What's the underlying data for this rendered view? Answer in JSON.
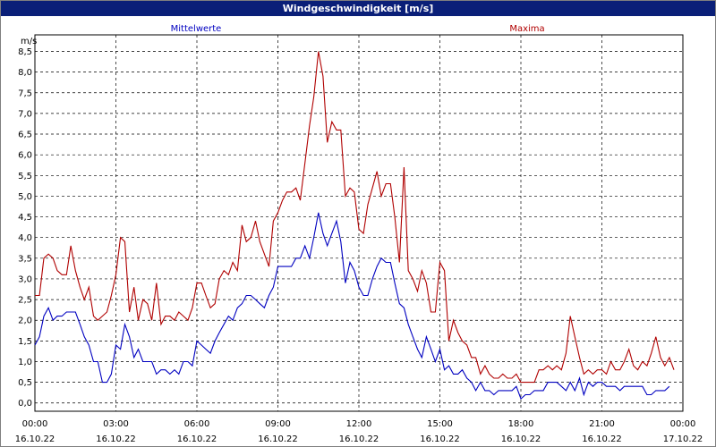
{
  "window": {
    "title": "Windgeschwindigkeit [m/s]"
  },
  "colors": {
    "titlebar": "#0a1f78",
    "series_mean": "#0000c0",
    "series_max": "#b00000",
    "grid": "#000000"
  },
  "chart_data": {
    "type": "line",
    "title": "Windgeschwindigkeit [m/s]",
    "ylabel": "m/s",
    "ylim": [
      -0.2,
      8.9
    ],
    "yticks": [
      0.0,
      0.5,
      1.0,
      1.5,
      2.0,
      2.5,
      3.0,
      3.5,
      4.0,
      4.5,
      5.0,
      5.5,
      6.0,
      6.5,
      7.0,
      7.5,
      8.0,
      8.5
    ],
    "ytick_labels": [
      "0,0",
      "0,5",
      "1,0",
      "1,5",
      "2,0",
      "2,5",
      "3,0",
      "3,5",
      "4,0",
      "4,5",
      "5,0",
      "5,5",
      "6,0",
      "6,5",
      "7,0",
      "7,5",
      "8,0",
      "8,5"
    ],
    "xlim": [
      0,
      24
    ],
    "xticks": [
      {
        "time": "00:00",
        "date": "16.10.22"
      },
      {
        "time": "03:00",
        "date": "16.10.22"
      },
      {
        "time": "06:00",
        "date": "16.10.22"
      },
      {
        "time": "09:00",
        "date": "16.10.22"
      },
      {
        "time": "12:00",
        "date": "16.10.22"
      },
      {
        "time": "15:00",
        "date": "16.10.22"
      },
      {
        "time": "18:00",
        "date": "16.10.22"
      },
      {
        "time": "21:00",
        "date": "16.10.22"
      },
      {
        "time": "00:00",
        "date": "17.10.22"
      }
    ],
    "legend": {
      "placement": "top"
    },
    "grid": true,
    "series": [
      {
        "name": "Mittelwerte",
        "color": "#0000c0",
        "points": [
          [
            0.0,
            1.4
          ],
          [
            0.17,
            1.6
          ],
          [
            0.33,
            2.1
          ],
          [
            0.5,
            2.3
          ],
          [
            0.67,
            2.0
          ],
          [
            0.83,
            2.1
          ],
          [
            1.0,
            2.1
          ],
          [
            1.17,
            2.2
          ],
          [
            1.33,
            2.2
          ],
          [
            1.5,
            2.2
          ],
          [
            1.67,
            1.9
          ],
          [
            1.83,
            1.6
          ],
          [
            2.0,
            1.4
          ],
          [
            2.17,
            1.0
          ],
          [
            2.33,
            1.0
          ],
          [
            2.5,
            0.5
          ],
          [
            2.67,
            0.5
          ],
          [
            2.83,
            0.7
          ],
          [
            3.0,
            1.4
          ],
          [
            3.17,
            1.3
          ],
          [
            3.33,
            1.9
          ],
          [
            3.5,
            1.6
          ],
          [
            3.67,
            1.1
          ],
          [
            3.83,
            1.3
          ],
          [
            4.0,
            1.0
          ],
          [
            4.17,
            1.0
          ],
          [
            4.33,
            1.0
          ],
          [
            4.5,
            0.7
          ],
          [
            4.67,
            0.8
          ],
          [
            4.83,
            0.8
          ],
          [
            5.0,
            0.7
          ],
          [
            5.17,
            0.8
          ],
          [
            5.33,
            0.7
          ],
          [
            5.5,
            1.0
          ],
          [
            5.67,
            1.0
          ],
          [
            5.83,
            0.9
          ],
          [
            6.0,
            1.5
          ],
          [
            6.17,
            1.4
          ],
          [
            6.33,
            1.3
          ],
          [
            6.5,
            1.2
          ],
          [
            6.67,
            1.5
          ],
          [
            6.83,
            1.7
          ],
          [
            7.0,
            1.9
          ],
          [
            7.17,
            2.1
          ],
          [
            7.33,
            2.0
          ],
          [
            7.5,
            2.3
          ],
          [
            7.67,
            2.4
          ],
          [
            7.83,
            2.6
          ],
          [
            8.0,
            2.6
          ],
          [
            8.17,
            2.5
          ],
          [
            8.33,
            2.4
          ],
          [
            8.5,
            2.3
          ],
          [
            8.67,
            2.6
          ],
          [
            8.83,
            2.8
          ],
          [
            9.0,
            3.3
          ],
          [
            9.17,
            3.3
          ],
          [
            9.33,
            3.3
          ],
          [
            9.5,
            3.3
          ],
          [
            9.67,
            3.5
          ],
          [
            9.83,
            3.5
          ],
          [
            10.0,
            3.8
          ],
          [
            10.17,
            3.5
          ],
          [
            10.33,
            4.0
          ],
          [
            10.5,
            4.6
          ],
          [
            10.67,
            4.1
          ],
          [
            10.83,
            3.8
          ],
          [
            11.0,
            4.1
          ],
          [
            11.17,
            4.4
          ],
          [
            11.33,
            3.9
          ],
          [
            11.5,
            2.9
          ],
          [
            11.67,
            3.4
          ],
          [
            11.83,
            3.2
          ],
          [
            12.0,
            2.8
          ],
          [
            12.17,
            2.6
          ],
          [
            12.33,
            2.6
          ],
          [
            12.5,
            3.0
          ],
          [
            12.67,
            3.3
          ],
          [
            12.83,
            3.5
          ],
          [
            13.0,
            3.4
          ],
          [
            13.17,
            3.4
          ],
          [
            13.33,
            2.9
          ],
          [
            13.5,
            2.4
          ],
          [
            13.67,
            2.3
          ],
          [
            13.83,
            1.9
          ],
          [
            14.0,
            1.6
          ],
          [
            14.17,
            1.3
          ],
          [
            14.33,
            1.1
          ],
          [
            14.5,
            1.6
          ],
          [
            14.67,
            1.3
          ],
          [
            14.83,
            1.0
          ],
          [
            15.0,
            1.3
          ],
          [
            15.17,
            0.8
          ],
          [
            15.33,
            0.9
          ],
          [
            15.5,
            0.7
          ],
          [
            15.67,
            0.7
          ],
          [
            15.83,
            0.8
          ],
          [
            16.0,
            0.6
          ],
          [
            16.17,
            0.5
          ],
          [
            16.33,
            0.3
          ],
          [
            16.5,
            0.5
          ],
          [
            16.67,
            0.3
          ],
          [
            16.83,
            0.3
          ],
          [
            17.0,
            0.2
          ],
          [
            17.17,
            0.3
          ],
          [
            17.33,
            0.3
          ],
          [
            17.5,
            0.3
          ],
          [
            17.67,
            0.3
          ],
          [
            17.83,
            0.4
          ],
          [
            18.0,
            0.1
          ],
          [
            18.17,
            0.2
          ],
          [
            18.33,
            0.2
          ],
          [
            18.5,
            0.3
          ],
          [
            18.67,
            0.3
          ],
          [
            18.83,
            0.3
          ],
          [
            19.0,
            0.5
          ],
          [
            19.17,
            0.5
          ],
          [
            19.33,
            0.5
          ],
          [
            19.5,
            0.4
          ],
          [
            19.67,
            0.3
          ],
          [
            19.83,
            0.5
          ],
          [
            20.0,
            0.3
          ],
          [
            20.17,
            0.6
          ],
          [
            20.33,
            0.2
          ],
          [
            20.5,
            0.5
          ],
          [
            20.67,
            0.4
          ],
          [
            20.83,
            0.5
          ],
          [
            21.0,
            0.5
          ],
          [
            21.17,
            0.4
          ],
          [
            21.33,
            0.4
          ],
          [
            21.5,
            0.4
          ],
          [
            21.67,
            0.3
          ],
          [
            21.83,
            0.4
          ],
          [
            22.0,
            0.4
          ],
          [
            22.17,
            0.4
          ],
          [
            22.33,
            0.4
          ],
          [
            22.5,
            0.4
          ],
          [
            22.67,
            0.2
          ],
          [
            22.83,
            0.2
          ],
          [
            23.0,
            0.3
          ],
          [
            23.17,
            0.3
          ],
          [
            23.33,
            0.3
          ],
          [
            23.5,
            0.4
          ]
        ]
      },
      {
        "name": "Maxima",
        "color": "#b00000",
        "points": [
          [
            0.0,
            2.6
          ],
          [
            0.17,
            2.6
          ],
          [
            0.33,
            3.5
          ],
          [
            0.5,
            3.6
          ],
          [
            0.67,
            3.5
          ],
          [
            0.83,
            3.2
          ],
          [
            1.0,
            3.1
          ],
          [
            1.17,
            3.1
          ],
          [
            1.33,
            3.8
          ],
          [
            1.5,
            3.2
          ],
          [
            1.67,
            2.8
          ],
          [
            1.83,
            2.5
          ],
          [
            2.0,
            2.8
          ],
          [
            2.17,
            2.1
          ],
          [
            2.33,
            2.0
          ],
          [
            2.5,
            2.1
          ],
          [
            2.67,
            2.2
          ],
          [
            2.83,
            2.6
          ],
          [
            3.0,
            3.1
          ],
          [
            3.17,
            4.0
          ],
          [
            3.33,
            3.9
          ],
          [
            3.5,
            2.2
          ],
          [
            3.67,
            2.8
          ],
          [
            3.83,
            2.0
          ],
          [
            4.0,
            2.5
          ],
          [
            4.17,
            2.4
          ],
          [
            4.33,
            2.0
          ],
          [
            4.5,
            2.9
          ],
          [
            4.67,
            1.9
          ],
          [
            4.83,
            2.1
          ],
          [
            5.0,
            2.1
          ],
          [
            5.17,
            2.0
          ],
          [
            5.33,
            2.2
          ],
          [
            5.5,
            2.1
          ],
          [
            5.67,
            2.0
          ],
          [
            5.83,
            2.3
          ],
          [
            6.0,
            2.9
          ],
          [
            6.17,
            2.9
          ],
          [
            6.33,
            2.6
          ],
          [
            6.5,
            2.3
          ],
          [
            6.67,
            2.4
          ],
          [
            6.83,
            3.0
          ],
          [
            7.0,
            3.2
          ],
          [
            7.17,
            3.1
          ],
          [
            7.33,
            3.4
          ],
          [
            7.5,
            3.2
          ],
          [
            7.67,
            4.3
          ],
          [
            7.83,
            3.9
          ],
          [
            8.0,
            4.0
          ],
          [
            8.17,
            4.4
          ],
          [
            8.33,
            3.9
          ],
          [
            8.5,
            3.6
          ],
          [
            8.67,
            3.3
          ],
          [
            8.83,
            4.4
          ],
          [
            9.0,
            4.6
          ],
          [
            9.17,
            4.9
          ],
          [
            9.33,
            5.1
          ],
          [
            9.5,
            5.1
          ],
          [
            9.67,
            5.2
          ],
          [
            9.83,
            4.9
          ],
          [
            10.0,
            5.8
          ],
          [
            10.17,
            6.7
          ],
          [
            10.33,
            7.4
          ],
          [
            10.5,
            8.5
          ],
          [
            10.67,
            7.9
          ],
          [
            10.83,
            6.3
          ],
          [
            11.0,
            6.8
          ],
          [
            11.17,
            6.6
          ],
          [
            11.33,
            6.6
          ],
          [
            11.5,
            5.0
          ],
          [
            11.67,
            5.2
          ],
          [
            11.83,
            5.1
          ],
          [
            12.0,
            4.2
          ],
          [
            12.17,
            4.1
          ],
          [
            12.33,
            4.8
          ],
          [
            12.5,
            5.2
          ],
          [
            12.67,
            5.6
          ],
          [
            12.83,
            5.0
          ],
          [
            13.0,
            5.3
          ],
          [
            13.17,
            5.3
          ],
          [
            13.33,
            4.5
          ],
          [
            13.5,
            3.4
          ],
          [
            13.67,
            5.7
          ],
          [
            13.83,
            3.2
          ],
          [
            14.0,
            3.0
          ],
          [
            14.17,
            2.7
          ],
          [
            14.33,
            3.2
          ],
          [
            14.5,
            2.9
          ],
          [
            14.67,
            2.2
          ],
          [
            14.83,
            2.2
          ],
          [
            15.0,
            3.4
          ],
          [
            15.17,
            3.2
          ],
          [
            15.33,
            1.5
          ],
          [
            15.5,
            2.0
          ],
          [
            15.67,
            1.7
          ],
          [
            15.83,
            1.5
          ],
          [
            16.0,
            1.4
          ],
          [
            16.17,
            1.1
          ],
          [
            16.33,
            1.1
          ],
          [
            16.5,
            0.7
          ],
          [
            16.67,
            0.9
          ],
          [
            16.83,
            0.7
          ],
          [
            17.0,
            0.6
          ],
          [
            17.17,
            0.6
          ],
          [
            17.33,
            0.7
          ],
          [
            17.5,
            0.6
          ],
          [
            17.67,
            0.6
          ],
          [
            17.83,
            0.7
          ],
          [
            18.0,
            0.5
          ],
          [
            18.17,
            0.5
          ],
          [
            18.33,
            0.5
          ],
          [
            18.5,
            0.5
          ],
          [
            18.67,
            0.8
          ],
          [
            18.83,
            0.8
          ],
          [
            19.0,
            0.9
          ],
          [
            19.17,
            0.8
          ],
          [
            19.33,
            0.9
          ],
          [
            19.5,
            0.8
          ],
          [
            19.67,
            1.2
          ],
          [
            19.83,
            2.1
          ],
          [
            20.0,
            1.6
          ],
          [
            20.17,
            1.1
          ],
          [
            20.33,
            0.7
          ],
          [
            20.5,
            0.8
          ],
          [
            20.67,
            0.7
          ],
          [
            20.83,
            0.8
          ],
          [
            21.0,
            0.8
          ],
          [
            21.17,
            0.7
          ],
          [
            21.33,
            1.0
          ],
          [
            21.5,
            0.8
          ],
          [
            21.67,
            0.8
          ],
          [
            21.83,
            1.0
          ],
          [
            22.0,
            1.3
          ],
          [
            22.17,
            0.9
          ],
          [
            22.33,
            0.8
          ],
          [
            22.5,
            1.0
          ],
          [
            22.67,
            0.9
          ],
          [
            22.83,
            1.2
          ],
          [
            23.0,
            1.6
          ],
          [
            23.17,
            1.1
          ],
          [
            23.33,
            0.9
          ],
          [
            23.5,
            1.1
          ],
          [
            23.67,
            0.8
          ]
        ]
      }
    ]
  }
}
